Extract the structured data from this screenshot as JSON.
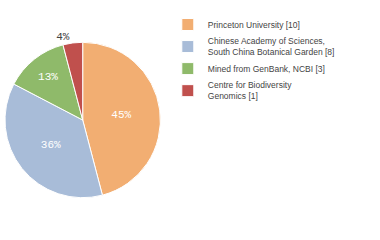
{
  "chart_data": {
    "type": "pie",
    "categories": [
      "Princeton University [10]",
      "Chinese Academy of Sciences,\nSouth China Botanical Garden [8]",
      "Mined from GenBank, NCBI [3]",
      "Centre for Biodiversity\nGenomics [1]"
    ],
    "values": [
      45,
      36,
      13,
      4
    ],
    "value_labels": [
      "45%",
      "36%",
      "13%",
      "4%"
    ],
    "colors": [
      "#f2ae72",
      "#a8bcd8",
      "#8fba6a",
      "#c0504d"
    ],
    "data_labels": true,
    "legend": "right"
  }
}
